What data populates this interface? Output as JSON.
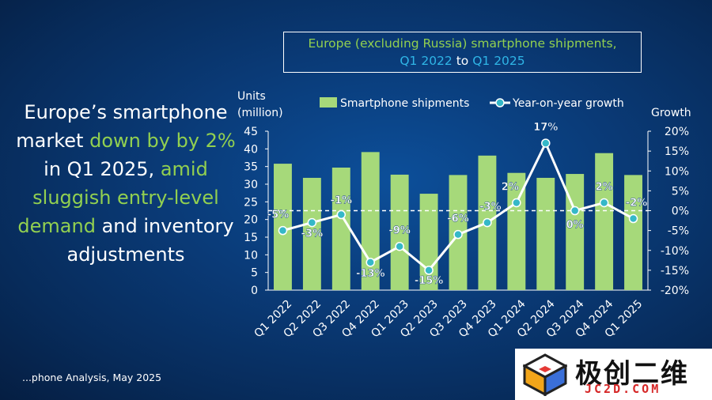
{
  "headline": {
    "p1": "Europe’s smartphone market ",
    "p2": "down by by 2%",
    "p3": " in Q1 2025, ",
    "p4": "amid sluggish entry-level demand",
    "p5": " and inventory adjustments"
  },
  "title": {
    "t1": "Europe (excluding Russia) smartphone shipments,",
    "t2": "Q1 2022",
    "t3": " to ",
    "t4": "Q1 2025"
  },
  "source": "...phone Analysis, May 2025",
  "logo": {
    "name": "极创二维",
    "url": "JC2D.COM"
  },
  "colors": {
    "bar": "#a6d97a",
    "line": "#ffffff",
    "marker": "#35b8c8",
    "hl_green": "#92d050",
    "hl_cyan": "#2fb5e6"
  },
  "chart_data": {
    "type": "bar",
    "categories": [
      "Q1 2022",
      "Q2 2022",
      "Q3 2022",
      "Q4 2022",
      "Q1 2023",
      "Q2 2023",
      "Q3 2023",
      "Q4 2023",
      "Q1 2024",
      "Q2 2024",
      "Q3 2024",
      "Q4 2024",
      "Q1 2025"
    ],
    "series": [
      {
        "name": "Smartphone shipments",
        "type": "bar",
        "axis": "left",
        "values": [
          35.8,
          31.8,
          34.7,
          39.1,
          32.7,
          27.3,
          32.6,
          38.1,
          33.2,
          31.8,
          32.9,
          38.8,
          32.6
        ]
      },
      {
        "name": "Year-on-year growth",
        "type": "line",
        "axis": "right",
        "values": [
          -5,
          -3,
          -1,
          -13,
          -9,
          -15,
          -6,
          -3,
          2,
          17,
          0,
          2,
          -2
        ],
        "labels": [
          "-5%",
          "-3%",
          "-1%",
          "-13%",
          "-9%",
          "-15%",
          "-6%",
          "-3%",
          "2%",
          "17%",
          "0%",
          "2%",
          "-2%"
        ]
      }
    ],
    "y_left": {
      "label_1": "Units",
      "label_2": "(million)",
      "ylim": [
        0,
        45
      ],
      "ticks": [
        "0",
        "5",
        "10",
        "15",
        "20",
        "25",
        "30",
        "35",
        "40",
        "45"
      ]
    },
    "y_right": {
      "label": "Growth",
      "ylim": [
        -20,
        20
      ],
      "ticks": [
        "-20%",
        "-15%",
        "-10%",
        "-5%",
        "0%",
        "5%",
        "10%",
        "15%",
        "20%"
      ]
    },
    "legend": {
      "position": "top"
    },
    "grid": false
  }
}
